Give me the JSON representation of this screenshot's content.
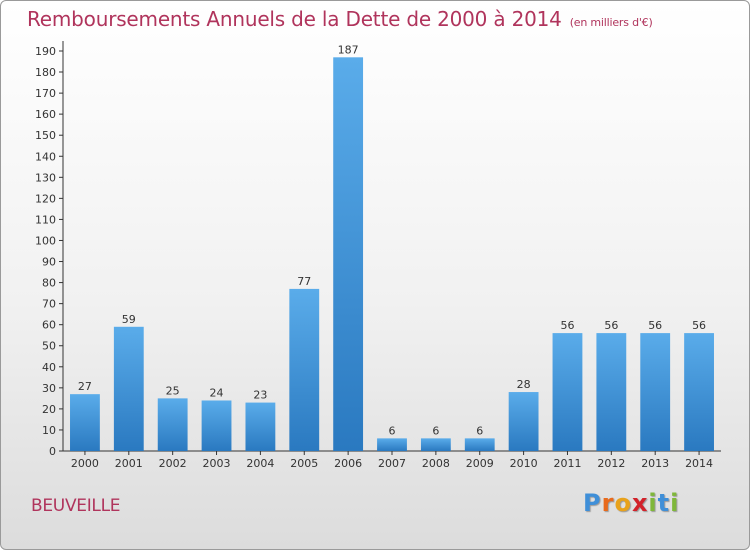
{
  "header": {
    "title": "Remboursements Annuels de la Dette de 2000 à 2014",
    "unit": "(en milliers d'€)"
  },
  "footer": {
    "commune": "BEUVEILLE",
    "logo": [
      "P",
      "r",
      "o",
      "x",
      "i",
      "t",
      "i"
    ],
    "logo_colors": [
      "#3f8fd8",
      "#e86a1c",
      "#e8a21c",
      "#d2222a",
      "#7fb73a",
      "#3f8fd8",
      "#7fb73a"
    ]
  },
  "colors": {
    "bar_top": "#5aacea",
    "bar_bottom": "#2a79c0",
    "title": "#b0345c"
  },
  "chart_data": {
    "type": "bar",
    "title": "Remboursements Annuels de la Dette de 2000 à 2014",
    "subtitle": "(en milliers d'€)",
    "xlabel": "",
    "ylabel": "",
    "categories": [
      "2000",
      "2001",
      "2002",
      "2003",
      "2004",
      "2005",
      "2006",
      "2007",
      "2008",
      "2009",
      "2010",
      "2011",
      "2012",
      "2013",
      "2014"
    ],
    "values": [
      27,
      59,
      25,
      24,
      23,
      77,
      187,
      6,
      6,
      6,
      28,
      56,
      56,
      56,
      56
    ],
    "ylim": [
      0,
      190
    ],
    "yticks": [
      0,
      10,
      20,
      30,
      40,
      50,
      60,
      70,
      80,
      90,
      100,
      110,
      120,
      130,
      140,
      150,
      160,
      170,
      180,
      190
    ],
    "grid": false,
    "legend": "none"
  }
}
